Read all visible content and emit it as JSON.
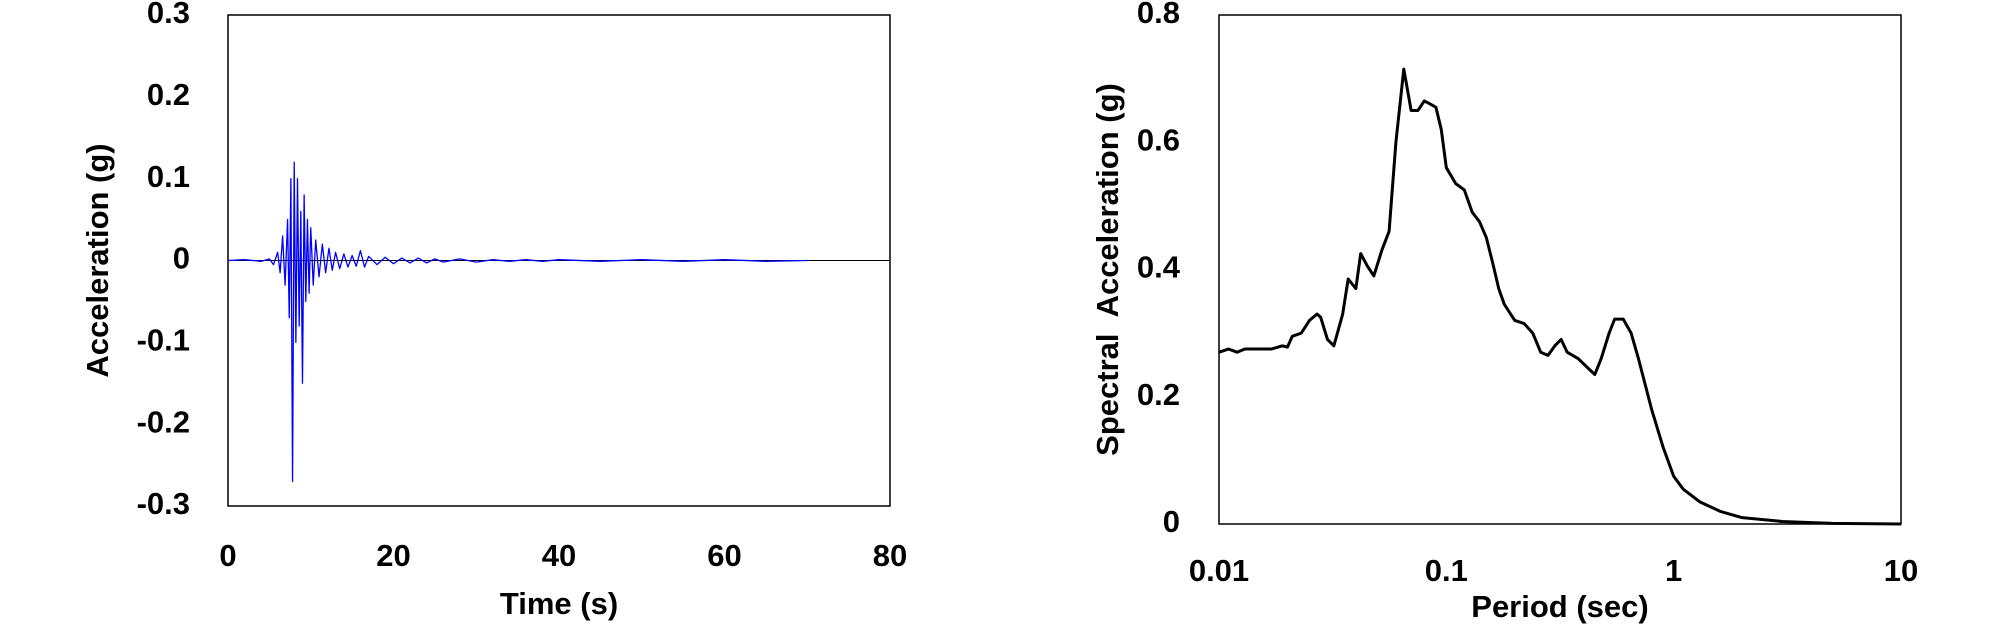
{
  "chart_data": [
    {
      "type": "line",
      "xlabel": "Time (s)",
      "ylabel": "Acceleration (g)",
      "color": "#0000ff",
      "xscale": "linear",
      "grid": false,
      "x": [
        0,
        2,
        4,
        5,
        5.5,
        6,
        6.3,
        6.6,
        6.9,
        7.2,
        7.4,
        7.6,
        7.8,
        8.0,
        8.2,
        8.4,
        8.6,
        8.8,
        9.0,
        9.2,
        9.4,
        9.6,
        9.8,
        10,
        10.3,
        10.6,
        11,
        11.4,
        11.8,
        12.2,
        12.6,
        13,
        13.5,
        14,
        14.5,
        15,
        15.5,
        16,
        16.5,
        17,
        18,
        19,
        20,
        21,
        22,
        23,
        24,
        25,
        26,
        28,
        30,
        32,
        34,
        36,
        38,
        40,
        45,
        50,
        55,
        60,
        65,
        70
      ],
      "values": [
        0,
        0.001,
        -0.001,
        0.002,
        -0.005,
        0.01,
        -0.015,
        0.03,
        -0.03,
        0.05,
        -0.07,
        0.1,
        -0.27,
        0.12,
        -0.1,
        0.1,
        -0.08,
        0.06,
        -0.15,
        0.08,
        -0.05,
        0.05,
        -0.04,
        0.04,
        -0.03,
        0.025,
        -0.02,
        0.02,
        -0.015,
        0.015,
        -0.012,
        0.01,
        -0.01,
        0.008,
        -0.008,
        0.006,
        -0.007,
        0.012,
        -0.008,
        0.005,
        -0.005,
        0.004,
        -0.004,
        0.003,
        -0.003,
        0.003,
        -0.003,
        0.002,
        -0.002,
        0.002,
        -0.002,
        0.001,
        -0.001,
        0.001,
        -0.001,
        0.001,
        -0.001,
        0.001,
        -0.001,
        0.001,
        -0.001,
        0
      ],
      "xlim": [
        0,
        80
      ],
      "xticks": [
        0,
        20,
        40,
        60,
        80
      ],
      "ylim": [
        -0.3,
        0.3
      ],
      "yticks": [
        -0.3,
        -0.2,
        -0.1,
        0,
        0.1,
        0.2,
        0.3
      ]
    },
    {
      "type": "line",
      "xlabel": "Period (sec)",
      "ylabel": "Spectral  Acceleration (g)",
      "color": "#000000",
      "xscale": "log",
      "grid": false,
      "x": [
        0.01,
        0.011,
        0.012,
        0.013,
        0.015,
        0.017,
        0.019,
        0.02,
        0.021,
        0.023,
        0.025,
        0.027,
        0.028,
        0.03,
        0.032,
        0.035,
        0.037,
        0.04,
        0.042,
        0.045,
        0.048,
        0.052,
        0.056,
        0.06,
        0.065,
        0.07,
        0.075,
        0.08,
        0.085,
        0.09,
        0.095,
        0.1,
        0.11,
        0.12,
        0.13,
        0.14,
        0.15,
        0.16,
        0.17,
        0.18,
        0.2,
        0.22,
        0.24,
        0.26,
        0.28,
        0.3,
        0.32,
        0.34,
        0.38,
        0.42,
        0.45,
        0.48,
        0.52,
        0.55,
        0.6,
        0.65,
        0.7,
        0.8,
        0.9,
        1.0,
        1.1,
        1.3,
        1.6,
        2,
        3,
        5,
        10
      ],
      "values": [
        0.27,
        0.275,
        0.27,
        0.275,
        0.275,
        0.275,
        0.28,
        0.278,
        0.295,
        0.3,
        0.32,
        0.33,
        0.325,
        0.29,
        0.28,
        0.33,
        0.385,
        0.37,
        0.425,
        0.405,
        0.39,
        0.43,
        0.46,
        0.6,
        0.715,
        0.65,
        0.65,
        0.665,
        0.66,
        0.655,
        0.62,
        0.56,
        0.535,
        0.525,
        0.49,
        0.475,
        0.45,
        0.41,
        0.37,
        0.345,
        0.32,
        0.315,
        0.3,
        0.27,
        0.265,
        0.28,
        0.29,
        0.27,
        0.26,
        0.245,
        0.235,
        0.26,
        0.3,
        0.322,
        0.322,
        0.3,
        0.26,
        0.18,
        0.12,
        0.075,
        0.055,
        0.035,
        0.02,
        0.01,
        0.004,
        0.001,
        0
      ],
      "xlim": [
        0.01,
        10
      ],
      "xticks": [
        0.01,
        0.1,
        1,
        10
      ],
      "ylim": [
        0,
        0.8
      ],
      "yticks": [
        0,
        0.2,
        0.4,
        0.6,
        0.8
      ]
    }
  ]
}
